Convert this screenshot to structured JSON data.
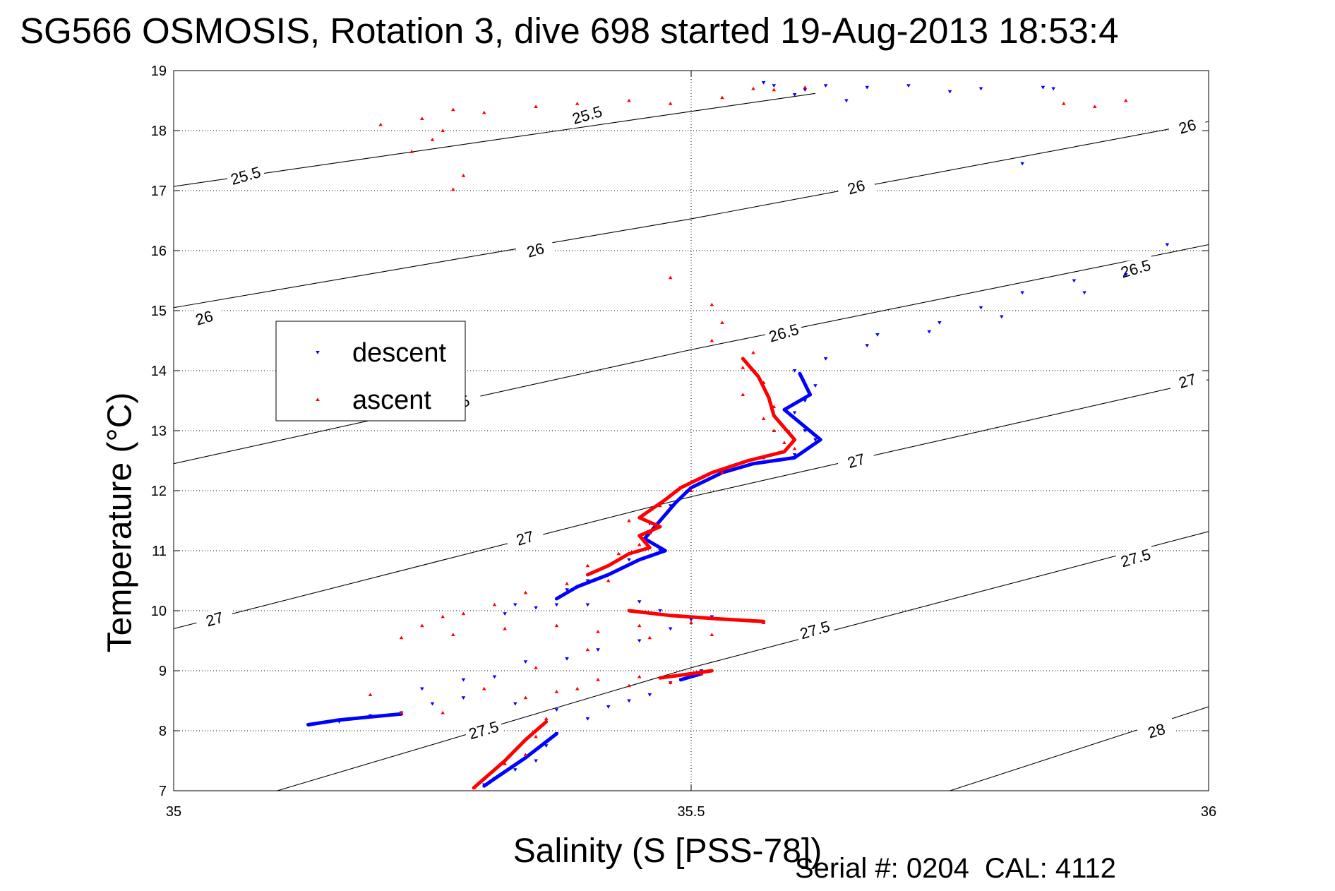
{
  "title": "SG566 OSMOSIS, Rotation 3, dive 698 started 19-Aug-2013 18:53:4",
  "footnote": {
    "serial": "Serial #: 0204",
    "cal": "CAL: 4112"
  },
  "chart_data": {
    "type": "scatter",
    "title": "SG566 OSMOSIS, Rotation 3, dive 698 started 19-Aug-2013 18:53:4",
    "xlabel": "Salinity (S [PSS-78])",
    "ylabel": "Temperature (°C)",
    "xlim": [
      35,
      36
    ],
    "ylim": [
      7,
      19
    ],
    "xticks": [
      35,
      35.5,
      36
    ],
    "yticks": [
      7,
      8,
      9,
      10,
      11,
      12,
      13,
      14,
      15,
      16,
      17,
      18,
      19
    ],
    "grid": "dotted at major ticks",
    "legend": {
      "placement": "left, middle",
      "entries": [
        "descent",
        "ascent"
      ]
    },
    "colors": {
      "descent": "#0000ff",
      "ascent": "#ff0000",
      "contour": "#000000"
    },
    "density_contours": [
      {
        "level": "25.5",
        "points": [
          [
            35.0,
            17.07
          ],
          [
            35.5,
            18.32
          ],
          [
            35.62,
            18.62
          ]
        ]
      },
      {
        "level": "26",
        "points": [
          [
            35.0,
            15.05
          ],
          [
            35.5,
            16.53
          ],
          [
            36.0,
            18.15
          ]
        ]
      },
      {
        "level": "26.5",
        "points": [
          [
            35.0,
            12.45
          ],
          [
            35.5,
            14.35
          ],
          [
            36.0,
            16.1
          ]
        ]
      },
      {
        "level": "27",
        "points": [
          [
            35.0,
            9.7
          ],
          [
            35.5,
            11.9
          ],
          [
            36.0,
            13.85
          ]
        ]
      },
      {
        "level": "27.5",
        "points": [
          [
            35.1,
            7.0
          ],
          [
            35.5,
            9.05
          ],
          [
            36.0,
            11.32
          ]
        ]
      },
      {
        "level": "28",
        "points": [
          [
            35.75,
            7.0
          ],
          [
            36.0,
            8.4
          ]
        ]
      }
    ],
    "contour_labels": [
      {
        "text": "25.5",
        "s": 35.07,
        "t": 17.22
      },
      {
        "text": "25.5",
        "s": 35.4,
        "t": 18.23
      },
      {
        "text": "26",
        "s": 35.03,
        "t": 14.85
      },
      {
        "text": "26",
        "s": 35.35,
        "t": 15.98
      },
      {
        "text": "26",
        "s": 35.66,
        "t": 17.03
      },
      {
        "text": "26",
        "s": 35.98,
        "t": 18.04
      },
      {
        "text": "26.5",
        "s": 35.59,
        "t": 14.6
      },
      {
        "text": "26.5",
        "s": 35.93,
        "t": 15.67
      },
      {
        "text": ".5",
        "s": 35.28,
        "t": 13.45
      },
      {
        "text": "27",
        "s": 35.04,
        "t": 9.83
      },
      {
        "text": "27",
        "s": 35.34,
        "t": 11.18
      },
      {
        "text": "27",
        "s": 35.66,
        "t": 12.47
      },
      {
        "text": "27",
        "s": 35.98,
        "t": 13.8
      },
      {
        "text": "27.5",
        "s": 35.3,
        "t": 7.98
      },
      {
        "text": "27.5",
        "s": 35.62,
        "t": 9.65
      },
      {
        "text": "27.5",
        "s": 35.93,
        "t": 10.85
      },
      {
        "text": "28",
        "s": 35.95,
        "t": 7.97
      }
    ],
    "series": [
      {
        "name": "descent",
        "marker": "triangle-down",
        "points": [
          [
            35.58,
            18.75
          ],
          [
            35.57,
            18.8
          ],
          [
            35.61,
            18.68
          ],
          [
            35.6,
            18.6
          ],
          [
            35.63,
            18.75
          ],
          [
            35.67,
            18.72
          ],
          [
            35.71,
            18.75
          ],
          [
            35.65,
            18.5
          ],
          [
            35.75,
            18.65
          ],
          [
            35.78,
            18.7
          ],
          [
            35.85,
            18.7
          ],
          [
            35.82,
            17.45
          ],
          [
            35.84,
            18.72
          ],
          [
            35.96,
            16.1
          ],
          [
            35.92,
            15.6
          ],
          [
            35.87,
            15.5
          ],
          [
            35.82,
            15.3
          ],
          [
            35.78,
            15.05
          ],
          [
            35.74,
            14.8
          ],
          [
            35.68,
            14.6
          ],
          [
            35.63,
            14.2
          ],
          [
            35.67,
            14.42
          ],
          [
            35.73,
            14.65
          ],
          [
            35.8,
            14.9
          ],
          [
            35.88,
            15.3
          ],
          [
            35.6,
            14.0
          ],
          [
            35.62,
            13.75
          ],
          [
            35.61,
            13.5
          ],
          [
            35.6,
            13.3
          ],
          [
            35.61,
            13.0
          ],
          [
            35.62,
            12.85
          ],
          [
            35.6,
            12.6
          ],
          [
            35.57,
            12.55
          ],
          [
            35.53,
            12.35
          ],
          [
            35.49,
            12.05
          ],
          [
            35.48,
            11.75
          ],
          [
            35.46,
            11.45
          ],
          [
            35.47,
            11.0
          ],
          [
            35.44,
            10.85
          ],
          [
            35.4,
            10.5
          ],
          [
            35.38,
            10.35
          ],
          [
            35.37,
            10.1
          ],
          [
            35.35,
            10.05
          ],
          [
            35.32,
            9.95
          ],
          [
            35.33,
            10.1
          ],
          [
            35.4,
            10.1
          ],
          [
            35.45,
            10.15
          ],
          [
            35.47,
            10.0
          ],
          [
            35.5,
            9.85
          ],
          [
            35.52,
            9.9
          ],
          [
            35.48,
            9.7
          ],
          [
            35.45,
            9.5
          ],
          [
            35.41,
            9.35
          ],
          [
            35.38,
            9.2
          ],
          [
            35.34,
            9.15
          ],
          [
            35.31,
            8.9
          ],
          [
            35.28,
            8.85
          ],
          [
            35.25,
            8.45
          ],
          [
            35.22,
            8.3
          ],
          [
            35.19,
            8.25
          ],
          [
            35.16,
            8.15
          ],
          [
            35.13,
            8.1
          ],
          [
            35.2,
            8.25
          ],
          [
            35.24,
            8.7
          ],
          [
            35.28,
            8.55
          ],
          [
            35.33,
            8.45
          ],
          [
            35.37,
            8.35
          ],
          [
            35.42,
            8.4
          ],
          [
            35.46,
            8.6
          ],
          [
            35.49,
            8.85
          ],
          [
            35.51,
            9.0
          ],
          [
            35.48,
            8.8
          ],
          [
            35.44,
            8.5
          ],
          [
            35.4,
            8.2
          ],
          [
            35.37,
            7.95
          ],
          [
            35.36,
            7.75
          ],
          [
            35.35,
            7.5
          ],
          [
            35.33,
            7.35
          ],
          [
            35.31,
            7.2
          ],
          [
            35.3,
            7.1
          ]
        ],
        "segments": [
          [
            [
              35.605,
              13.95
            ],
            [
              35.615,
              13.6
            ],
            [
              35.59,
              13.35
            ],
            [
              35.625,
              12.85
            ],
            [
              35.6,
              12.55
            ],
            [
              35.56,
              12.45
            ],
            [
              35.53,
              12.3
            ],
            [
              35.5,
              12.05
            ],
            [
              35.485,
              11.8
            ],
            [
              35.47,
              11.5
            ],
            [
              35.455,
              11.2
            ],
            [
              35.475,
              11.0
            ],
            [
              35.45,
              10.85
            ],
            [
              35.42,
              10.6
            ],
            [
              35.39,
              10.4
            ],
            [
              35.37,
              10.2
            ]
          ],
          [
            [
              35.13,
              8.1
            ],
            [
              35.16,
              8.18
            ],
            [
              35.22,
              8.28
            ]
          ],
          [
            [
              35.49,
              8.85
            ],
            [
              35.51,
              8.95
            ]
          ],
          [
            [
              35.37,
              7.95
            ],
            [
              35.34,
              7.55
            ],
            [
              35.31,
              7.2
            ],
            [
              35.3,
              7.08
            ]
          ]
        ]
      },
      {
        "name": "ascent",
        "marker": "triangle-up",
        "points": [
          [
            35.2,
            18.1
          ],
          [
            35.24,
            18.2
          ],
          [
            35.26,
            18.0
          ],
          [
            35.25,
            17.85
          ],
          [
            35.23,
            17.65
          ],
          [
            35.27,
            18.35
          ],
          [
            35.3,
            18.3
          ],
          [
            35.35,
            18.4
          ],
          [
            35.39,
            18.45
          ],
          [
            35.44,
            18.5
          ],
          [
            35.48,
            18.45
          ],
          [
            35.53,
            18.55
          ],
          [
            35.56,
            18.7
          ],
          [
            35.58,
            18.68
          ],
          [
            35.61,
            18.72
          ],
          [
            35.27,
            17.02
          ],
          [
            35.28,
            17.25
          ],
          [
            35.86,
            18.45
          ],
          [
            35.89,
            18.4
          ],
          [
            35.92,
            18.5
          ],
          [
            35.48,
            15.55
          ],
          [
            35.52,
            15.1
          ],
          [
            35.53,
            14.8
          ],
          [
            35.52,
            14.5
          ],
          [
            35.56,
            14.3
          ],
          [
            35.55,
            14.05
          ],
          [
            35.57,
            13.8
          ],
          [
            35.55,
            13.6
          ],
          [
            35.58,
            13.4
          ],
          [
            35.57,
            13.2
          ],
          [
            35.58,
            13.0
          ],
          [
            35.59,
            12.8
          ],
          [
            35.6,
            12.7
          ],
          [
            35.57,
            12.55
          ],
          [
            35.53,
            12.3
          ],
          [
            35.5,
            12.0
          ],
          [
            35.47,
            11.75
          ],
          [
            35.44,
            11.5
          ],
          [
            35.46,
            11.3
          ],
          [
            35.45,
            11.1
          ],
          [
            35.43,
            10.95
          ],
          [
            35.4,
            10.75
          ],
          [
            35.42,
            10.5
          ],
          [
            35.38,
            10.45
          ],
          [
            35.34,
            10.3
          ],
          [
            35.31,
            10.1
          ],
          [
            35.28,
            9.95
          ],
          [
            35.26,
            9.9
          ],
          [
            35.24,
            9.75
          ],
          [
            35.22,
            9.55
          ],
          [
            35.27,
            9.6
          ],
          [
            35.32,
            9.7
          ],
          [
            35.37,
            9.75
          ],
          [
            35.41,
            9.65
          ],
          [
            35.45,
            9.75
          ],
          [
            35.5,
            9.8
          ],
          [
            35.54,
            9.85
          ],
          [
            35.57,
            9.8
          ],
          [
            35.52,
            9.6
          ],
          [
            35.46,
            9.55
          ],
          [
            35.4,
            9.35
          ],
          [
            35.35,
            9.05
          ],
          [
            35.3,
            8.7
          ],
          [
            35.26,
            8.3
          ],
          [
            35.22,
            8.3
          ],
          [
            35.19,
            8.6
          ],
          [
            35.34,
            8.55
          ],
          [
            35.39,
            8.7
          ],
          [
            35.44,
            8.75
          ],
          [
            35.48,
            8.8
          ],
          [
            35.51,
            8.95
          ],
          [
            35.45,
            8.9
          ],
          [
            35.41,
            8.85
          ],
          [
            35.37,
            8.65
          ],
          [
            35.36,
            8.2
          ],
          [
            35.35,
            7.9
          ],
          [
            35.34,
            7.6
          ],
          [
            35.32,
            7.45
          ],
          [
            35.3,
            7.2
          ],
          [
            35.29,
            7.05
          ]
        ],
        "segments": [
          [
            [
              35.55,
              14.2
            ],
            [
              35.565,
              13.9
            ],
            [
              35.575,
              13.55
            ],
            [
              35.58,
              13.25
            ],
            [
              35.6,
              12.85
            ],
            [
              35.59,
              12.65
            ],
            [
              35.555,
              12.5
            ],
            [
              35.52,
              12.3
            ],
            [
              35.49,
              12.05
            ],
            [
              35.475,
              11.85
            ],
            [
              35.45,
              11.55
            ],
            [
              35.47,
              11.4
            ],
            [
              35.45,
              11.25
            ],
            [
              35.46,
              11.05
            ],
            [
              35.44,
              10.95
            ],
            [
              35.42,
              10.75
            ],
            [
              35.4,
              10.6
            ]
          ],
          [
            [
              35.44,
              10.0
            ],
            [
              35.48,
              9.92
            ],
            [
              35.53,
              9.86
            ],
            [
              35.57,
              9.82
            ]
          ],
          [
            [
              35.47,
              8.88
            ],
            [
              35.5,
              8.95
            ],
            [
              35.52,
              9.0
            ]
          ],
          [
            [
              35.36,
              8.15
            ],
            [
              35.34,
              7.85
            ],
            [
              35.32,
              7.5
            ],
            [
              35.3,
              7.2
            ],
            [
              35.29,
              7.05
            ]
          ]
        ]
      }
    ]
  }
}
